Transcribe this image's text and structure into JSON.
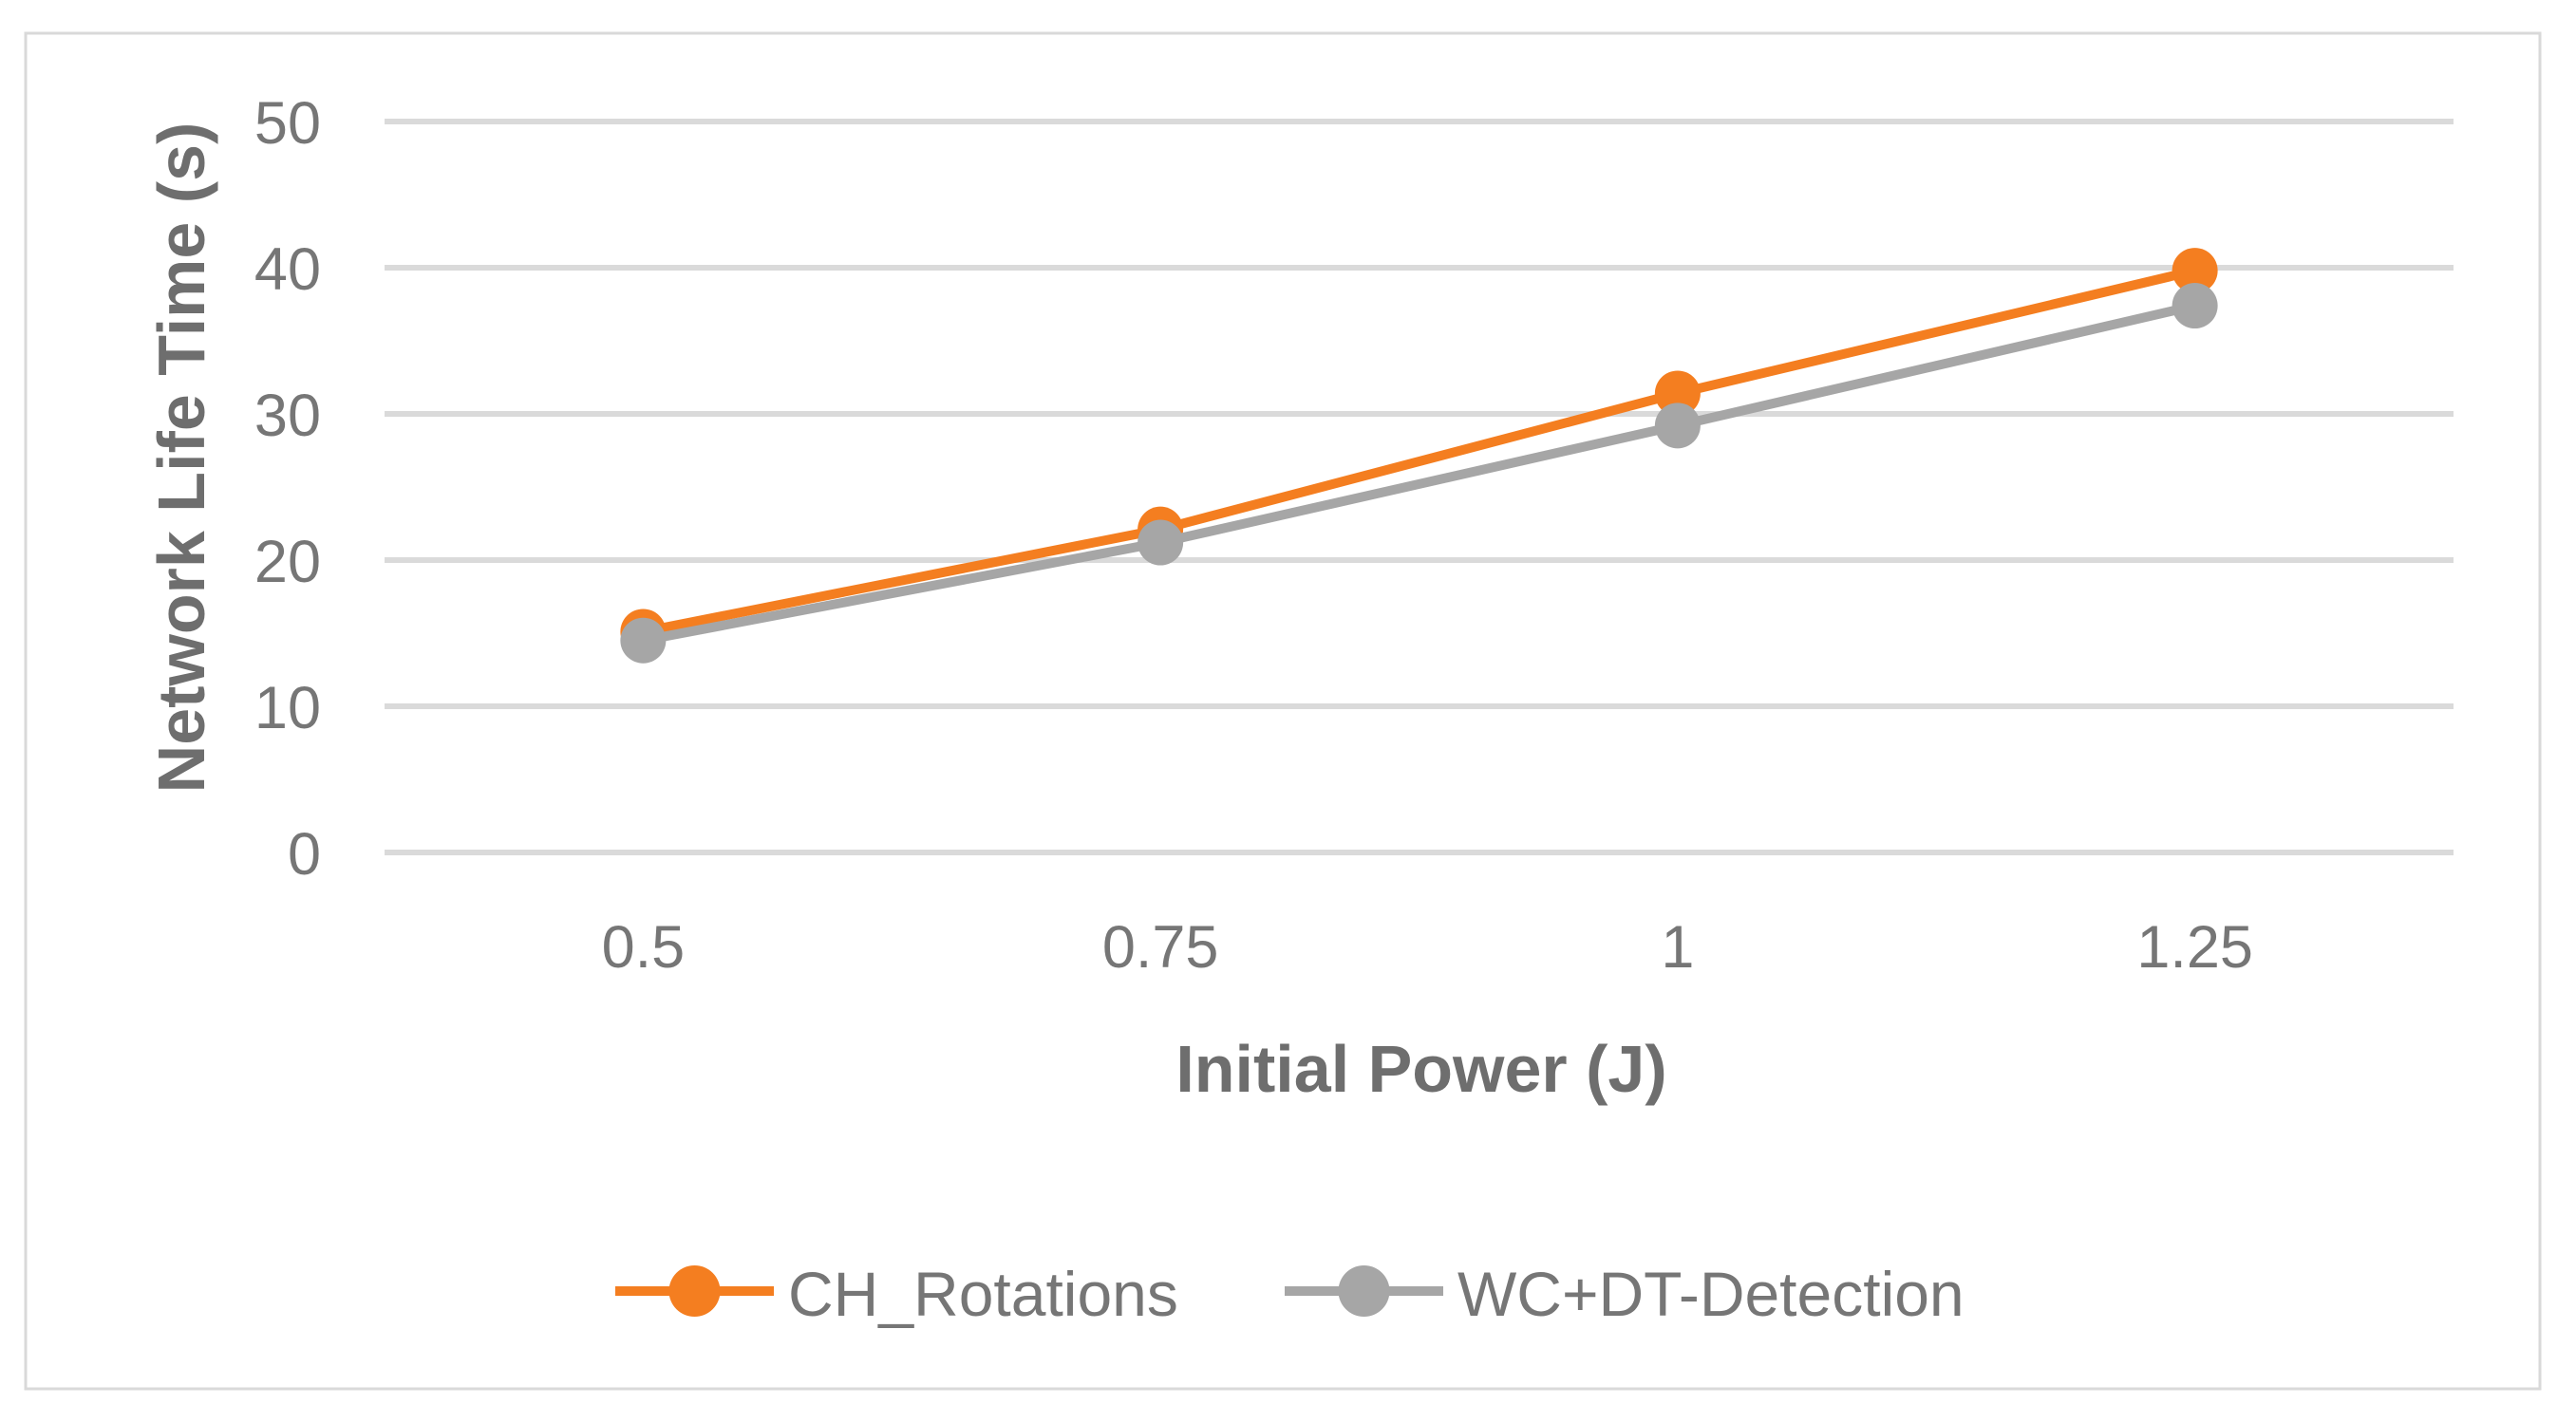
{
  "chart_data": {
    "type": "line",
    "title": "",
    "categories": [
      "0.5",
      "0.75",
      "1",
      "1.25"
    ],
    "xlabel": "Initial Power (J)",
    "ylabel": "Network Life Time (s)",
    "ylim": [
      0,
      50
    ],
    "yticks": [
      0,
      10,
      20,
      30,
      40,
      50
    ],
    "grid": "horizontal",
    "legend_position": "bottom",
    "series": [
      {
        "name": "CH_Rotations",
        "color": "#F47E20",
        "marker": "circle",
        "values": [
          15.1,
          22.1,
          31.4,
          39.8
        ]
      },
      {
        "name": "WC+DT-Detection",
        "color": "#A6A6A6",
        "marker": "circle",
        "values": [
          14.5,
          21.2,
          29.2,
          37.4
        ]
      }
    ]
  },
  "style": {
    "gridline_color": "#DADADA",
    "border_color": "#D9D9D9",
    "tick_text_color": "#767676",
    "title_text_color": "#6E6E6E",
    "background_color": "#FFFFFF"
  }
}
